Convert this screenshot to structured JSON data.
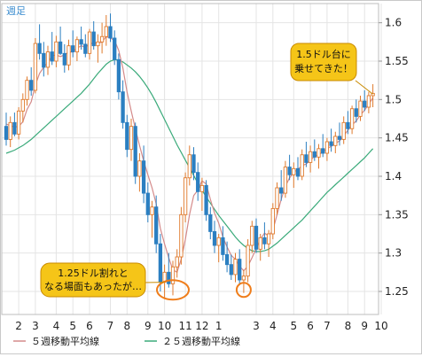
{
  "period_label": "週足",
  "chart_data": {
    "type": "candlestick",
    "yticks": [
      1.25,
      1.3,
      1.35,
      1.4,
      1.45,
      1.5,
      1.55,
      1.6
    ],
    "ylim": [
      1.22,
      1.625
    ],
    "xticks": [
      {
        "label": "2",
        "index": 3
      },
      {
        "label": "3",
        "index": 7
      },
      {
        "label": "4",
        "index": 12
      },
      {
        "label": "5",
        "index": 16
      },
      {
        "label": "6",
        "index": 20
      },
      {
        "label": "7",
        "index": 25
      },
      {
        "label": "8",
        "index": 29
      },
      {
        "label": "9",
        "index": 34
      },
      {
        "label": "10",
        "index": 38
      },
      {
        "label": "11",
        "index": 43
      },
      {
        "label": "12",
        "index": 47
      },
      {
        "label": "1",
        "index": 51
      },
      {
        "label": "3",
        "index": 60
      },
      {
        "label": "4",
        "index": 64
      },
      {
        "label": "5",
        "index": 69
      },
      {
        "label": "6",
        "index": 73
      },
      {
        "label": "7",
        "index": 77
      },
      {
        "label": "8",
        "index": 82
      },
      {
        "label": "9",
        "index": 86
      },
      {
        "label": "10",
        "index": 90
      }
    ],
    "candles": [
      [
        1.465,
        1.483,
        1.44,
        1.448
      ],
      [
        1.448,
        1.478,
        1.438,
        1.47
      ],
      [
        1.47,
        1.483,
        1.452,
        1.455
      ],
      [
        1.455,
        1.49,
        1.448,
        1.485
      ],
      [
        1.485,
        1.508,
        1.47,
        1.5
      ],
      [
        1.5,
        1.53,
        1.492,
        1.525
      ],
      [
        1.525,
        1.542,
        1.505,
        1.512
      ],
      [
        1.512,
        1.58,
        1.508,
        1.573
      ],
      [
        1.573,
        1.598,
        1.552,
        1.56
      ],
      [
        1.56,
        1.575,
        1.53,
        1.542
      ],
      [
        1.542,
        1.57,
        1.532,
        1.562
      ],
      [
        1.562,
        1.588,
        1.545,
        1.55
      ],
      [
        1.55,
        1.583,
        1.542,
        1.575
      ],
      [
        1.575,
        1.595,
        1.558,
        1.56
      ],
      [
        1.56,
        1.572,
        1.535,
        1.545
      ],
      [
        1.545,
        1.578,
        1.538,
        1.57
      ],
      [
        1.57,
        1.59,
        1.555,
        1.562
      ],
      [
        1.562,
        1.582,
        1.55,
        1.578
      ],
      [
        1.578,
        1.595,
        1.565,
        1.572
      ],
      [
        1.572,
        1.585,
        1.555,
        1.56
      ],
      [
        1.56,
        1.592,
        1.552,
        1.588
      ],
      [
        1.588,
        1.602,
        1.565,
        1.57
      ],
      [
        1.57,
        1.585,
        1.548,
        1.575
      ],
      [
        1.575,
        1.6,
        1.56,
        1.582
      ],
      [
        1.582,
        1.61,
        1.57,
        1.595
      ],
      [
        1.595,
        1.612,
        1.575,
        1.58
      ],
      [
        1.58,
        1.59,
        1.545,
        1.552
      ],
      [
        1.552,
        1.56,
        1.5,
        1.51
      ],
      [
        1.51,
        1.525,
        1.462,
        1.47
      ],
      [
        1.47,
        1.48,
        1.425,
        1.435
      ],
      [
        1.435,
        1.475,
        1.42,
        1.465
      ],
      [
        1.465,
        1.47,
        1.39,
        1.4
      ],
      [
        1.4,
        1.43,
        1.38,
        1.42
      ],
      [
        1.42,
        1.44,
        1.365,
        1.378
      ],
      [
        1.378,
        1.392,
        1.34,
        1.35
      ],
      [
        1.35,
        1.368,
        1.32,
        1.36
      ],
      [
        1.36,
        1.375,
        1.3,
        1.312
      ],
      [
        1.312,
        1.325,
        1.25,
        1.262
      ],
      [
        1.262,
        1.285,
        1.24,
        1.275
      ],
      [
        1.275,
        1.3,
        1.255,
        1.26
      ],
      [
        1.26,
        1.29,
        1.245,
        1.282
      ],
      [
        1.282,
        1.305,
        1.268,
        1.295
      ],
      [
        1.295,
        1.36,
        1.285,
        1.35
      ],
      [
        1.35,
        1.405,
        1.34,
        1.398
      ],
      [
        1.398,
        1.44,
        1.388,
        1.428
      ],
      [
        1.428,
        1.438,
        1.395,
        1.405
      ],
      [
        1.405,
        1.418,
        1.368,
        1.38
      ],
      [
        1.38,
        1.398,
        1.355,
        1.388
      ],
      [
        1.388,
        1.395,
        1.342,
        1.35
      ],
      [
        1.35,
        1.36,
        1.318,
        1.328
      ],
      [
        1.328,
        1.342,
        1.3,
        1.31
      ],
      [
        1.31,
        1.325,
        1.288,
        1.32
      ],
      [
        1.32,
        1.335,
        1.29,
        1.298
      ],
      [
        1.298,
        1.315,
        1.275,
        1.285
      ],
      [
        1.285,
        1.298,
        1.265,
        1.272
      ],
      [
        1.272,
        1.3,
        1.262,
        1.292
      ],
      [
        1.292,
        1.305,
        1.258,
        1.265
      ],
      [
        1.265,
        1.278,
        1.248,
        1.27
      ],
      [
        1.27,
        1.318,
        1.262,
        1.31
      ],
      [
        1.31,
        1.342,
        1.3,
        1.335
      ],
      [
        1.335,
        1.345,
        1.3,
        1.305
      ],
      [
        1.305,
        1.325,
        1.29,
        1.32
      ],
      [
        1.32,
        1.34,
        1.305,
        1.312
      ],
      [
        1.312,
        1.33,
        1.295,
        1.325
      ],
      [
        1.325,
        1.365,
        1.318,
        1.358
      ],
      [
        1.358,
        1.392,
        1.35,
        1.385
      ],
      [
        1.385,
        1.408,
        1.368,
        1.378
      ],
      [
        1.378,
        1.42,
        1.372,
        1.412
      ],
      [
        1.412,
        1.428,
        1.395,
        1.402
      ],
      [
        1.402,
        1.418,
        1.385,
        1.41
      ],
      [
        1.41,
        1.425,
        1.395,
        1.4
      ],
      [
        1.4,
        1.435,
        1.395,
        1.428
      ],
      [
        1.428,
        1.445,
        1.412,
        1.418
      ],
      [
        1.418,
        1.44,
        1.405,
        1.432
      ],
      [
        1.432,
        1.448,
        1.42,
        1.425
      ],
      [
        1.425,
        1.442,
        1.41,
        1.436
      ],
      [
        1.436,
        1.455,
        1.425,
        1.43
      ],
      [
        1.43,
        1.45,
        1.42,
        1.445
      ],
      [
        1.445,
        1.462,
        1.432,
        1.44
      ],
      [
        1.44,
        1.458,
        1.43,
        1.452
      ],
      [
        1.452,
        1.47,
        1.44,
        1.448
      ],
      [
        1.448,
        1.478,
        1.442,
        1.47
      ],
      [
        1.47,
        1.485,
        1.455,
        1.462
      ],
      [
        1.462,
        1.492,
        1.455,
        1.488
      ],
      [
        1.488,
        1.5,
        1.47,
        1.478
      ],
      [
        1.478,
        1.505,
        1.472,
        1.498
      ],
      [
        1.498,
        1.512,
        1.485,
        1.49
      ],
      [
        1.49,
        1.51,
        1.482,
        1.505
      ],
      [
        1.505,
        1.52,
        1.49,
        1.508
      ]
    ],
    "ma5": [
      1.468,
      1.466,
      1.464,
      1.465,
      1.471,
      1.487,
      1.497,
      1.519,
      1.534,
      1.542,
      1.548,
      1.557,
      1.558,
      1.556,
      1.558,
      1.562,
      1.562,
      1.567,
      1.57,
      1.568,
      1.572,
      1.574,
      1.573,
      1.575,
      1.582,
      1.58,
      1.577,
      1.564,
      1.541,
      1.51,
      1.485,
      1.462,
      1.44,
      1.42,
      1.402,
      1.385,
      1.364,
      1.332,
      1.312,
      1.294,
      1.278,
      1.275,
      1.292,
      1.318,
      1.35,
      1.375,
      1.382,
      1.394,
      1.39,
      1.37,
      1.352,
      1.339,
      1.321,
      1.308,
      1.297,
      1.292,
      1.283,
      1.277,
      1.283,
      1.294,
      1.306,
      1.318,
      1.326,
      1.322,
      1.33,
      1.35,
      1.37,
      1.387,
      1.398,
      1.405,
      1.409,
      1.414,
      1.416,
      1.421,
      1.426,
      1.428,
      1.432,
      1.436,
      1.439,
      1.443,
      1.446,
      1.453,
      1.46,
      1.467,
      1.472,
      1.48,
      1.486,
      1.494,
      1.502
    ],
    "ma25": [
      1.43,
      1.432,
      1.434,
      1.437,
      1.44,
      1.444,
      1.448,
      1.453,
      1.458,
      1.463,
      1.468,
      1.473,
      1.478,
      1.483,
      1.488,
      1.493,
      1.498,
      1.503,
      1.508,
      1.514,
      1.52,
      1.527,
      1.534,
      1.54,
      1.546,
      1.55,
      1.552,
      1.551,
      1.549,
      1.545,
      1.541,
      1.536,
      1.53,
      1.523,
      1.515,
      1.506,
      1.496,
      1.485,
      1.474,
      1.463,
      1.452,
      1.441,
      1.431,
      1.421,
      1.411,
      1.401,
      1.391,
      1.382,
      1.373,
      1.365,
      1.357,
      1.349,
      1.342,
      1.335,
      1.328,
      1.321,
      1.315,
      1.31,
      1.306,
      1.303,
      1.302,
      1.302,
      1.303,
      1.305,
      1.309,
      1.313,
      1.318,
      1.323,
      1.328,
      1.333,
      1.338,
      1.343,
      1.349,
      1.355,
      1.361,
      1.367,
      1.373,
      1.379,
      1.384,
      1.389,
      1.394,
      1.399,
      1.404,
      1.409,
      1.414,
      1.419,
      1.424,
      1.43,
      1.436
    ],
    "legend": [
      {
        "name": "５週移動平均線",
        "color": "#d48a8a"
      },
      {
        "name": "２５週移動平均線",
        "color": "#3aaa7a"
      }
    ],
    "annotations": [
      {
        "text": [
          "1.5ドル台に",
          "乗せてきた！"
        ]
      },
      {
        "text": [
          "1.25ドル割れと",
          "なる場面もあったが…"
        ]
      }
    ],
    "colors": {
      "up": "#e07a2c",
      "down": "#2b7fc1",
      "grid": "#e4e4e4",
      "callout_fill": "#f5c518",
      "callout_stroke": "#c98a00",
      "highlight": "#ef7d1a"
    }
  }
}
